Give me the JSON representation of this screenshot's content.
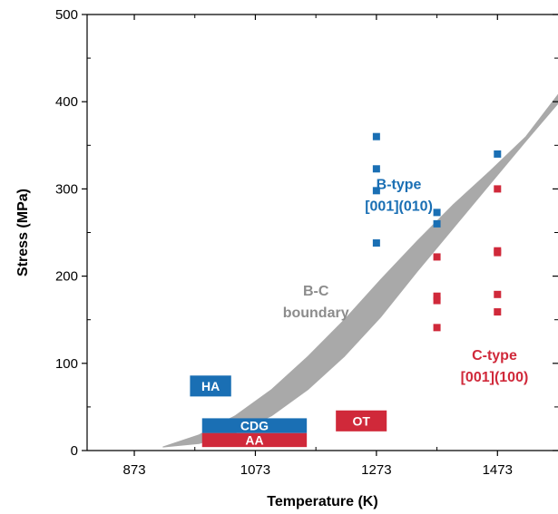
{
  "chart_data": {
    "type": "scatter",
    "xlabel": "Temperature (K)",
    "ylabel": "Stress (MPa)",
    "xlim": [
      795,
      1573
    ],
    "ylim": [
      0,
      500
    ],
    "xticks": [
      873,
      1073,
      1273,
      1473
    ],
    "yticks": [
      0,
      100,
      200,
      300,
      400,
      500
    ],
    "grid": false,
    "series": [
      {
        "type": "B-type",
        "color": "#1a6fb4",
        "points": [
          [
            1273,
            360
          ],
          [
            1273,
            323
          ],
          [
            1273,
            298
          ],
          [
            1273,
            238
          ],
          [
            1373,
            273
          ],
          [
            1373,
            260
          ],
          [
            1473,
            340
          ]
        ]
      },
      {
        "type": "C-type",
        "color": "#d0293a",
        "points": [
          [
            1373,
            222
          ],
          [
            1373,
            177
          ],
          [
            1373,
            172
          ],
          [
            1373,
            141
          ],
          [
            1473,
            300
          ],
          [
            1473,
            229
          ],
          [
            1473,
            227
          ],
          [
            1473,
            179
          ],
          [
            1473,
            159
          ]
        ]
      }
    ],
    "boundary_band": {
      "color": "#a9a9a9",
      "upper": [
        [
          920,
          4
        ],
        [
          980,
          18
        ],
        [
          1040,
          40
        ],
        [
          1100,
          70
        ],
        [
          1160,
          108
        ],
        [
          1220,
          150
        ],
        [
          1280,
          196
        ],
        [
          1340,
          240
        ],
        [
          1400,
          282
        ],
        [
          1460,
          320
        ],
        [
          1520,
          360
        ],
        [
          1573,
          408
        ]
      ],
      "lower": [
        [
          920,
          4
        ],
        [
          980,
          8
        ],
        [
          1040,
          20
        ],
        [
          1100,
          40
        ],
        [
          1160,
          70
        ],
        [
          1220,
          108
        ],
        [
          1280,
          153
        ],
        [
          1340,
          205
        ],
        [
          1400,
          255
        ],
        [
          1460,
          305
        ],
        [
          1520,
          355
        ],
        [
          1573,
          398
        ]
      ]
    },
    "annotations": [
      {
        "lines": [
          "B-type",
          "[001](010)"
        ],
        "x": 1310,
        "y": 300,
        "color": "#1a6fb4"
      },
      {
        "lines": [
          "B-C",
          "boundary"
        ],
        "x": 1173,
        "y": 178,
        "color": "#8c8c8c"
      },
      {
        "lines": [
          "C-type",
          "[001](100)"
        ],
        "x": 1468,
        "y": 104,
        "color": "#d0293a"
      }
    ],
    "regions": [
      {
        "label": "HA",
        "x0": 965,
        "x1": 1033,
        "y0": 62,
        "y1": 86,
        "color": "#1a6fb4"
      },
      {
        "label": "CDG",
        "x0": 985,
        "x1": 1158,
        "y0": 20,
        "y1": 37,
        "color": "#1a6fb4"
      },
      {
        "label": "AA",
        "x0": 985,
        "x1": 1158,
        "y0": 4,
        "y1": 20,
        "color": "#d0293a"
      },
      {
        "label": "OT",
        "x0": 1206,
        "x1": 1290,
        "y0": 22,
        "y1": 46,
        "color": "#d0293a"
      }
    ]
  }
}
